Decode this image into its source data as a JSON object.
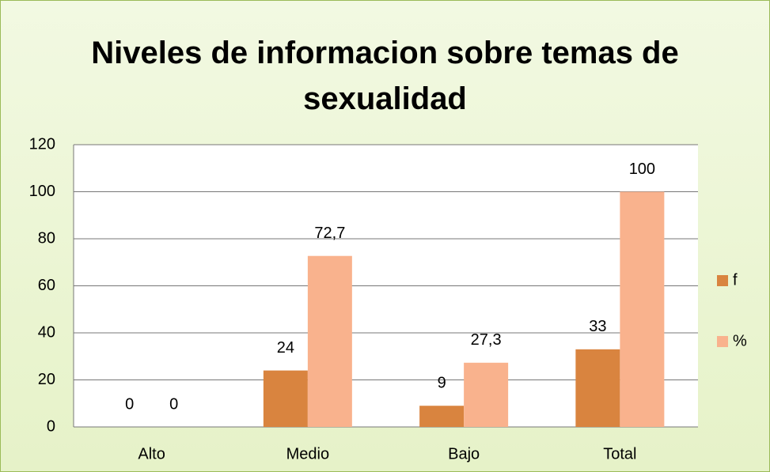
{
  "chart_data": {
    "type": "bar",
    "title": "Niveles de informacion sobre temas de sexualidad",
    "categories": [
      "Alto",
      "Medio",
      "Bajo",
      "Total"
    ],
    "series": [
      {
        "name": "f",
        "color": "#d9843f",
        "values": [
          0,
          24,
          9,
          33
        ]
      },
      {
        "name": "%",
        "color": "#f9b28d",
        "values": [
          0,
          72.7,
          27.3,
          100
        ],
        "value_labels": [
          "0",
          "72,7",
          "27,3",
          "100"
        ]
      }
    ],
    "ylim": [
      0,
      120
    ],
    "yticks": [
      0,
      20,
      40,
      60,
      80,
      100,
      120
    ],
    "grid": true,
    "legend": "right"
  }
}
